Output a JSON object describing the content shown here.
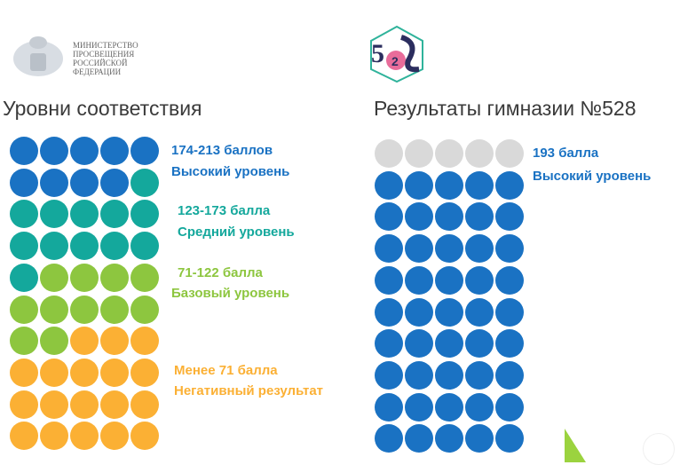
{
  "header": {
    "ministry_logo_text": [
      "МИНИСТЕРСТВО",
      "ПРОСВЕЩЕНИЯ",
      "РОССИЙСКОЙ",
      "ФЕДЕРАЦИИ"
    ],
    "school_logo_text": "528"
  },
  "left": {
    "title": "Уровни соответствия",
    "levels": [
      {
        "range": "174-213 баллов",
        "name": "Высокий уровень",
        "color": "#1a72c3",
        "count": 9
      },
      {
        "range": "123-173 балла",
        "name": "Средний уровень",
        "color": "#14a89c",
        "count": 12
      },
      {
        "range": "71-122 балла",
        "name": "Базовый уровень",
        "color": "#8dc63f",
        "count": 11
      },
      {
        "range": "Менее 71 балла",
        "name": "Негативный результат",
        "color": "#fbb034",
        "count": 18
      }
    ]
  },
  "right": {
    "title": "Результаты гимназии №528",
    "score": "193 балла",
    "level": "Высокий уровень",
    "score_color": "#1a72c3",
    "grid": [
      {
        "color": "#d9d9d9",
        "count": 5
      },
      {
        "color": "#1a72c3",
        "count": 45
      }
    ]
  }
}
